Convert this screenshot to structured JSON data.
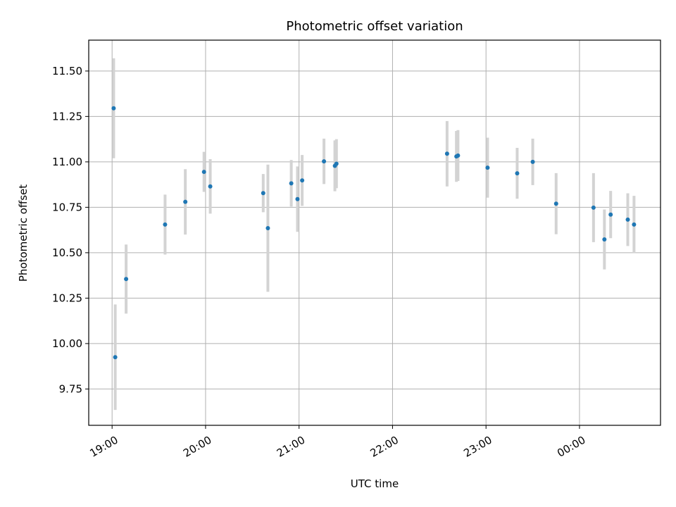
{
  "chart_data": {
    "type": "scatter",
    "title": "Photometric offset variation",
    "xlabel": "UTC time",
    "ylabel": "Photometric offset",
    "x_tick_labels": [
      "19:00",
      "20:00",
      "21:00",
      "22:00",
      "23:00",
      "00:00"
    ],
    "x_tick_values_min": [
      0,
      60,
      120,
      180,
      240,
      300
    ],
    "y_ticks": [
      9.75,
      10.0,
      10.25,
      10.5,
      10.75,
      11.0,
      11.25,
      11.5
    ],
    "y_tick_labels": [
      "9.75",
      "10.00",
      "10.25",
      "10.50",
      "10.75",
      "11.00",
      "11.25",
      "11.50"
    ],
    "xlim_min": [
      -15,
      352
    ],
    "ylim": [
      9.55,
      11.67
    ],
    "grid": true,
    "point_color": "#1f77b4",
    "errorbar_color": "#d3d3d3",
    "points": [
      {
        "time": "19:01",
        "y": 11.295,
        "err": 0.275
      },
      {
        "time": "19:02",
        "y": 9.925,
        "err": 0.29
      },
      {
        "time": "19:09",
        "y": 10.355,
        "err": 0.19
      },
      {
        "time": "19:34",
        "y": 10.655,
        "err": 0.165
      },
      {
        "time": "19:47",
        "y": 10.78,
        "err": 0.18
      },
      {
        "time": "19:59",
        "y": 10.945,
        "err": 0.11
      },
      {
        "time": "20:03",
        "y": 10.865,
        "err": 0.15
      },
      {
        "time": "20:37",
        "y": 10.828,
        "err": 0.105
      },
      {
        "time": "20:40",
        "y": 10.635,
        "err": 0.35
      },
      {
        "time": "20:55",
        "y": 10.882,
        "err": 0.128
      },
      {
        "time": "20:59",
        "y": 10.795,
        "err": 0.18
      },
      {
        "time": "21:02",
        "y": 10.898,
        "err": 0.14
      },
      {
        "time": "21:16",
        "y": 11.003,
        "err": 0.125
      },
      {
        "time": "21:23",
        "y": 10.978,
        "err": 0.14
      },
      {
        "time": "21:24",
        "y": 10.99,
        "err": 0.135
      },
      {
        "time": "22:35",
        "y": 11.045,
        "err": 0.18
      },
      {
        "time": "22:41",
        "y": 11.03,
        "err": 0.14
      },
      {
        "time": "22:42",
        "y": 11.035,
        "err": 0.14
      },
      {
        "time": "23:01",
        "y": 10.968,
        "err": 0.165
      },
      {
        "time": "23:20",
        "y": 10.937,
        "err": 0.14
      },
      {
        "time": "23:30",
        "y": 11.0,
        "err": 0.128
      },
      {
        "time": "23:45",
        "y": 10.77,
        "err": 0.168
      },
      {
        "time": "00:09",
        "y": 10.748,
        "err": 0.19
      },
      {
        "time": "00:16",
        "y": 10.573,
        "err": 0.165
      },
      {
        "time": "00:20",
        "y": 10.71,
        "err": 0.13
      },
      {
        "time": "00:31",
        "y": 10.682,
        "err": 0.145
      },
      {
        "time": "00:35",
        "y": 10.655,
        "err": 0.158
      }
    ]
  }
}
